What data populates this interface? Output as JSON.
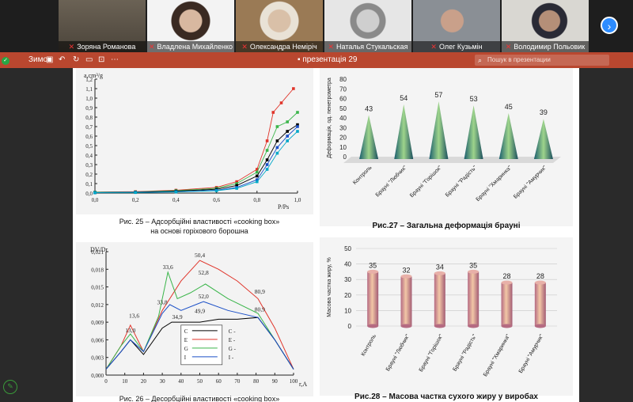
{
  "participants": [
    {
      "name": "Зоряна Романова",
      "bg": "#6b6255",
      "face": "#c7a48a"
    },
    {
      "name": "Владлена Михайленко",
      "bg": "#f3f3f3",
      "face": "#d8b8a0"
    },
    {
      "name": "Олександра Неміріч",
      "bg": "#9a7a55",
      "face": "#d9c0a8"
    },
    {
      "name": "Наталья Стукальская",
      "bg": "#e6e6e6",
      "face": "#cfcfcf"
    },
    {
      "name": "Олег Кузьмін",
      "bg": "#8a8f95",
      "face": "#c9a08a"
    },
    {
      "name": "Володимир Польовик",
      "bg": "#d9d7d2",
      "face": "#b58f78"
    }
  ],
  "ppbar": {
    "left_label": "Зимок",
    "title": "презентація 29",
    "search_placeholder": "Пошук в презентации",
    "accent": "#b9472f"
  },
  "fig25": {
    "caption1": "Рис. 25 – Адсорбційні властивості «cooking box»",
    "caption2": "на основі горіхового борошна",
    "ylabel": "a,cm³/g",
    "xlabel": "P/Ps",
    "yticks": [
      "0,0",
      "0,1",
      "0,2",
      "0,3",
      "0,4",
      "0,5",
      "0,6",
      "0,7",
      "0,8",
      "0,9",
      "1,0",
      "1,1",
      "1,2"
    ],
    "xticks": [
      "0,0",
      "0,2",
      "0,4",
      "0,6",
      "0,8",
      "1,0"
    ]
  },
  "fig26": {
    "caption": "Рис. 26 – Десорбційні властивості «cooking box»",
    "ylabel": "DV/Dr",
    "xlabel": "r,A",
    "yticks": [
      "0,000",
      "0,003",
      "0,006",
      "0,009",
      "0,012",
      "0,015",
      "0,018",
      "0,021"
    ],
    "xticks": [
      "0",
      "10",
      "20",
      "30",
      "40",
      "50",
      "60",
      "70",
      "80",
      "90",
      "100"
    ],
    "labels": [
      "13,6",
      "13,0",
      "33,6",
      "33,8",
      "34,9",
      "50,4",
      "52,8",
      "52,0",
      "49,9",
      "80,9",
      "80,9"
    ],
    "legend": [
      "C",
      "E",
      "G",
      "I"
    ],
    "legend_right": [
      "C -",
      "E -",
      "G -",
      "I -"
    ]
  },
  "chart_data": [
    {
      "type": "bar",
      "title": "Рис.27 – Загальна деформація брауні",
      "ylabel": "Деформація, од. пенетрометра",
      "categories": [
        "Контроль",
        "Брауні \"Любчик\"",
        "Брауні \"Горішок\"",
        "Брауні \"Радість\"",
        "Брауні \"Хмаринка\"",
        "Брауні \"Амурчик\""
      ],
      "values": [
        43,
        54,
        57,
        53,
        45,
        39
      ],
      "ylim": [
        0,
        80
      ],
      "yticks": [
        "0",
        "10",
        "20",
        "30",
        "40",
        "50",
        "60",
        "70",
        "80"
      ]
    },
    {
      "type": "bar",
      "title": "Рис.28 – Масова частка сухого жиру у виробах",
      "ylabel": "Масова частка жиру, %",
      "categories": [
        "Контроль",
        "Брауні \"Любчик\"",
        "Брауні \"Горішок\"",
        "Брауні \"Радість\"",
        "Брауні \"Хмаринка\"",
        "Брауні \"Амурчик\""
      ],
      "values": [
        35,
        32,
        34,
        35,
        28,
        28
      ],
      "ylim": [
        0,
        50
      ],
      "yticks": [
        "0",
        "10",
        "20",
        "30",
        "40",
        "50"
      ]
    }
  ]
}
